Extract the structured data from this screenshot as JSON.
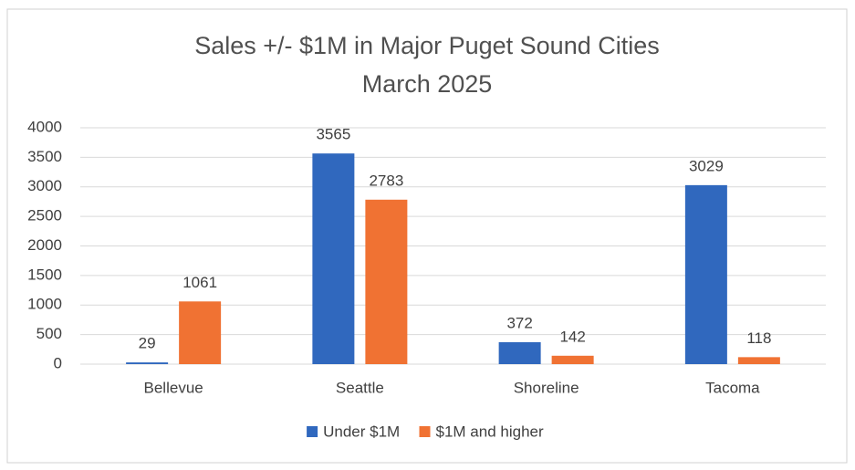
{
  "chart_data": {
    "type": "bar",
    "title": "Sales +/- $1M in Major Puget Sound Cities",
    "subtitle": "March 2025",
    "categories": [
      "Bellevue",
      "Seattle",
      "Shoreline",
      "Tacoma"
    ],
    "series": [
      {
        "name": "Under $1M",
        "color": "#3068be",
        "values": [
          29,
          3565,
          372,
          3029
        ]
      },
      {
        "name": "$1M and higher",
        "color": "#f07233",
        "values": [
          1061,
          2783,
          142,
          118
        ]
      }
    ],
    "ylim": [
      0,
      4000
    ],
    "yticks": [
      0,
      500,
      1000,
      1500,
      2000,
      2500,
      3000,
      3500,
      4000
    ],
    "grid": true,
    "data_labels": true,
    "legend": "bottom"
  }
}
